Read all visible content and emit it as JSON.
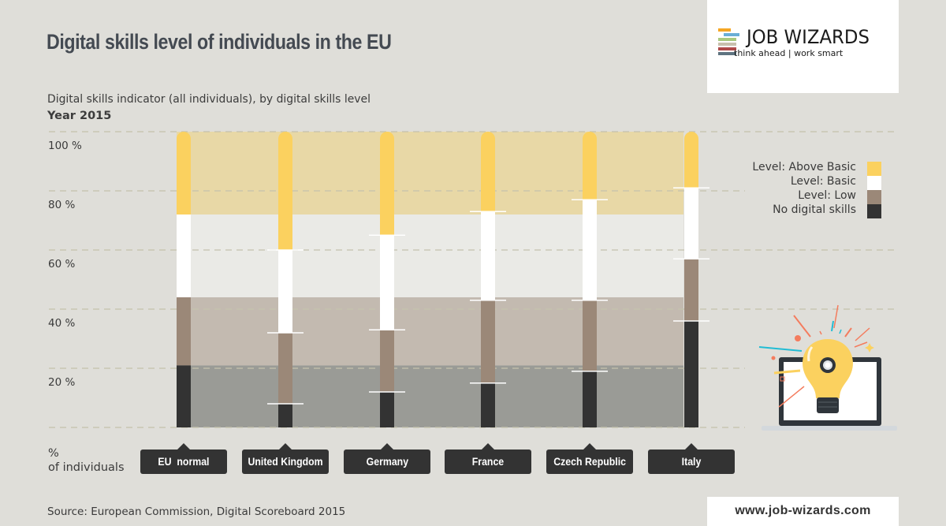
{
  "header": {
    "title": "Digital skills level of individuals in the EU",
    "subtitle": "Digital skills indicator (all individuals), by digital skills level",
    "year": "Year 2015"
  },
  "logo": {
    "name": "JOB WIZARDS",
    "tagline": "think ahead | work smart",
    "stripe_colors": [
      "#f5a623",
      "#6aaed6",
      "#a8c97f",
      "#c8c0ad",
      "#b04a4a",
      "#5e7380"
    ]
  },
  "footer": {
    "source": "Source: European Commission, Digital Scoreboard 2015",
    "url": "www.job-wizards.com"
  },
  "illustration": {
    "icon": "lightbulb-laptop-icon"
  },
  "colors": {
    "above_basic": "#fbd15f",
    "basic": "#ffffff",
    "low": "#9b8878",
    "none": "#333333",
    "band_above_basic": "#e8d8a6",
    "band_basic": "#eaeae6",
    "band_low": "#c3bab0",
    "band_none": "#9a9b96",
    "grid": "#c5c3ad",
    "background": "#dfded9"
  },
  "chart_data": {
    "type": "bar",
    "stacked": true,
    "orientation": "vertical",
    "title": "Digital skills level of individuals in the EU",
    "subtitle": "Digital skills indicator (all individuals), by digital skills level — Year 2015",
    "xlabel": "",
    "ylabel": "% of individuals",
    "ylabel_lines": [
      "%",
      "of individuals"
    ],
    "ylim": [
      0,
      100
    ],
    "yticks": [
      20,
      40,
      60,
      80,
      100
    ],
    "ytick_labels": [
      "20 %",
      "40 %",
      "60 %",
      "80 %",
      "100 %"
    ],
    "grid": true,
    "legend_position": "right",
    "categories": [
      "EU  normal",
      "United Kingdom",
      "Germany",
      "France",
      "Czech Republic",
      "Italy"
    ],
    "series": [
      {
        "name": "No digital skills",
        "key": "none",
        "values": [
          21,
          8,
          12,
          15,
          19,
          36
        ]
      },
      {
        "name": "Level: Low",
        "key": "low",
        "values": [
          23,
          24,
          21,
          28,
          24,
          21
        ]
      },
      {
        "name": "Level: Basic",
        "key": "basic",
        "values": [
          28,
          28,
          32,
          30,
          34,
          24
        ]
      },
      {
        "name": "Level: Above Basic",
        "key": "above_basic",
        "values": [
          28,
          40,
          35,
          27,
          23,
          19
        ]
      }
    ],
    "legend_order": [
      "Level: Above Basic",
      "Level: Basic",
      "Level: Low",
      "No digital skills"
    ],
    "reference_bands": "EU average levels shown as shaded horizontal bands behind bars"
  }
}
